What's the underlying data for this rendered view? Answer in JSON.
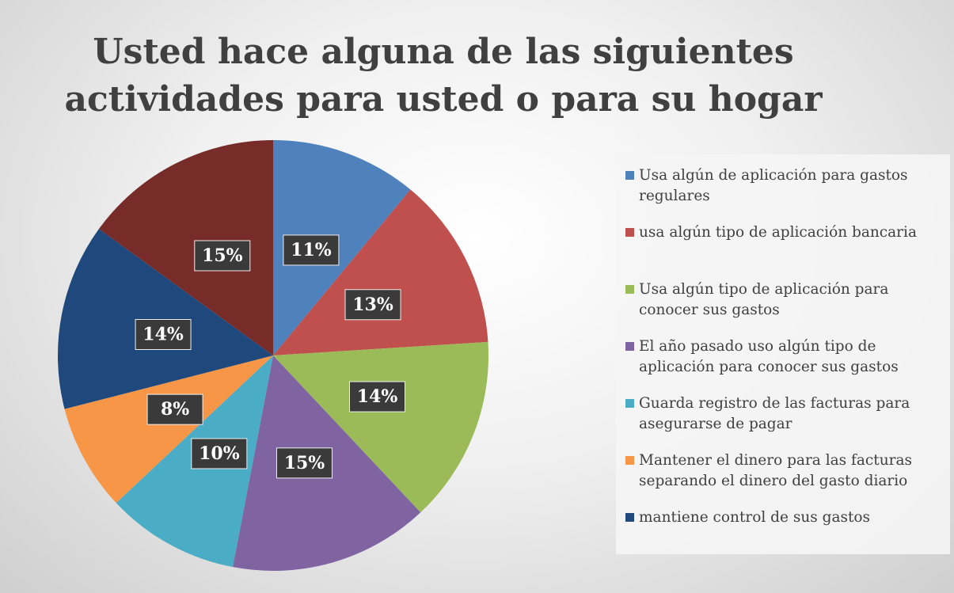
{
  "chart_data": {
    "type": "pie",
    "title": "Usted hace alguna de las siguientes actividades para usted o para su hogar",
    "categories": [
      "Usa algún de aplicación para gastos regulares",
      "usa algún tipo de aplicación bancaria",
      "Usa algún tipo de aplicación para conocer sus gastos",
      "El año pasado uso algún tipo de aplicación para conocer sus gastos",
      "Guarda registro de las facturas para asegurarse de pagar",
      "Mantener el dinero para las facturas separando el dinero del gasto diario",
      "mantiene control de sus gastos",
      null
    ],
    "values": [
      11,
      13,
      14,
      15,
      10,
      8,
      14,
      15
    ],
    "value_labels": [
      "11%",
      "13%",
      "14%",
      "15%",
      "10%",
      "8%",
      "14%",
      "15%"
    ],
    "colors": [
      "#4f81bd",
      "#c0504d",
      "#9bbb59",
      "#8064a2",
      "#4bacc6",
      "#f79646",
      "#1f497d",
      "#772c2a"
    ],
    "legend": "right"
  }
}
